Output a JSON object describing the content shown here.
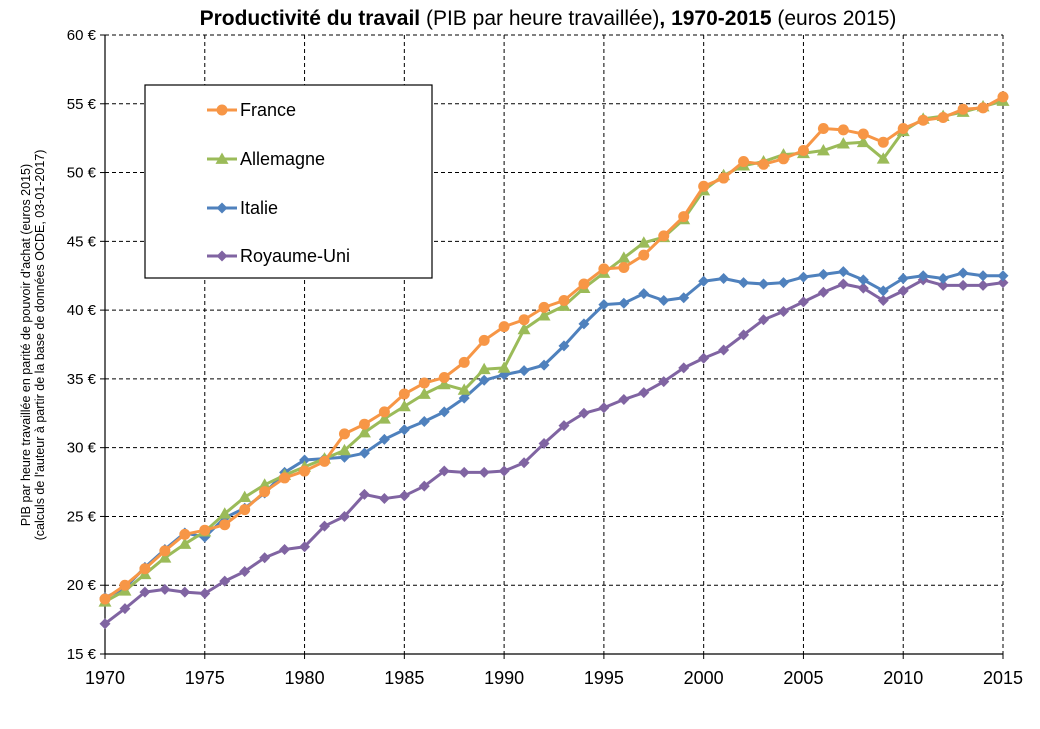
{
  "chart_data": {
    "type": "line",
    "title": {
      "part1_bold": "Productivité du travail",
      "part2": " (PIB par heure travaillée)",
      "part3_bold": ", 1970-2015",
      "part4": " (euros 2015)"
    },
    "ylabel": {
      "line1": "PIB par heure travaillée en parité de pouvoir d'achat (euros 2015)",
      "line2": "(calculs de l'auteur à partir de la base de données OCDE, 03-01-2017)"
    },
    "xlabel": "",
    "x_ticks": [
      "1970",
      "1975",
      "1980",
      "1985",
      "1990",
      "1995",
      "2000",
      "2005",
      "2010",
      "2015"
    ],
    "y_ticks": [
      "15 €",
      "20 €",
      "25 €",
      "30 €",
      "35 €",
      "40 €",
      "45 €",
      "50 €",
      "55 €",
      "60 €"
    ],
    "xlim": [
      1970,
      2015
    ],
    "ylim": [
      15,
      60
    ],
    "grid": "dashed",
    "legend_position": "top-left",
    "x": [
      1970,
      1971,
      1972,
      1973,
      1974,
      1975,
      1976,
      1977,
      1978,
      1979,
      1980,
      1981,
      1982,
      1983,
      1984,
      1985,
      1986,
      1987,
      1988,
      1989,
      1990,
      1991,
      1992,
      1993,
      1994,
      1995,
      1996,
      1997,
      1998,
      1999,
      2000,
      2001,
      2002,
      2003,
      2004,
      2005,
      2006,
      2007,
      2008,
      2009,
      2010,
      2011,
      2012,
      2013,
      2014,
      2015
    ],
    "series": [
      {
        "name": "France",
        "color": "#F79646",
        "marker": "circle",
        "values": [
          19.0,
          20.0,
          21.2,
          22.5,
          23.7,
          24.0,
          24.4,
          25.5,
          26.8,
          27.8,
          28.3,
          29.0,
          31.0,
          31.7,
          32.6,
          33.9,
          34.7,
          35.1,
          36.2,
          37.8,
          38.8,
          39.3,
          40.2,
          40.7,
          41.9,
          43.0,
          43.1,
          44.0,
          45.4,
          46.8,
          49.0,
          49.6,
          50.8,
          50.6,
          51.0,
          51.6,
          53.2,
          53.1,
          52.8,
          52.2,
          53.2,
          53.8,
          54.0,
          54.6,
          54.7,
          55.5
        ]
      },
      {
        "name": "Allemagne",
        "color": "#9BBB59",
        "marker": "triangle",
        "values": [
          18.8,
          19.6,
          20.8,
          22.0,
          23.0,
          23.9,
          25.2,
          26.4,
          27.3,
          28.0,
          28.6,
          29.2,
          29.8,
          31.1,
          32.1,
          33.0,
          33.9,
          34.6,
          34.2,
          35.7,
          35.8,
          38.6,
          39.6,
          40.3,
          41.6,
          42.7,
          43.8,
          44.9,
          45.3,
          46.6,
          48.7,
          49.8,
          50.5,
          50.8,
          51.3,
          51.4,
          51.6,
          52.1,
          52.2,
          51.0,
          53.0,
          53.9,
          54.1,
          54.4,
          54.8,
          55.2
        ]
      },
      {
        "name": "Italie",
        "color": "#4F81BD",
        "marker": "diamond",
        "values": [
          19.1,
          19.8,
          21.3,
          22.6,
          23.8,
          23.5,
          24.9,
          25.6,
          26.7,
          28.2,
          29.1,
          29.2,
          29.3,
          29.6,
          30.6,
          31.3,
          31.9,
          32.6,
          33.6,
          34.9,
          35.3,
          35.6,
          36.0,
          37.4,
          39.0,
          40.4,
          40.5,
          41.2,
          40.7,
          40.9,
          42.1,
          42.3,
          42.0,
          41.9,
          42.0,
          42.4,
          42.6,
          42.8,
          42.2,
          41.4,
          42.3,
          42.5,
          42.3,
          42.7,
          42.5,
          42.5
        ]
      },
      {
        "name": "Royaume-Uni",
        "color": "#8064A2",
        "marker": "diamond",
        "values": [
          17.2,
          18.3,
          19.5,
          19.7,
          19.5,
          19.4,
          20.3,
          21.0,
          22.0,
          22.6,
          22.8,
          24.3,
          25.0,
          26.6,
          26.3,
          26.5,
          27.2,
          28.3,
          28.2,
          28.2,
          28.3,
          28.9,
          30.3,
          31.6,
          32.5,
          32.9,
          33.5,
          34.0,
          34.8,
          35.8,
          36.5,
          37.1,
          38.2,
          39.3,
          39.9,
          40.6,
          41.3,
          41.9,
          41.6,
          40.7,
          41.4,
          42.2,
          41.8,
          41.8,
          41.8,
          42.0
        ]
      }
    ]
  }
}
